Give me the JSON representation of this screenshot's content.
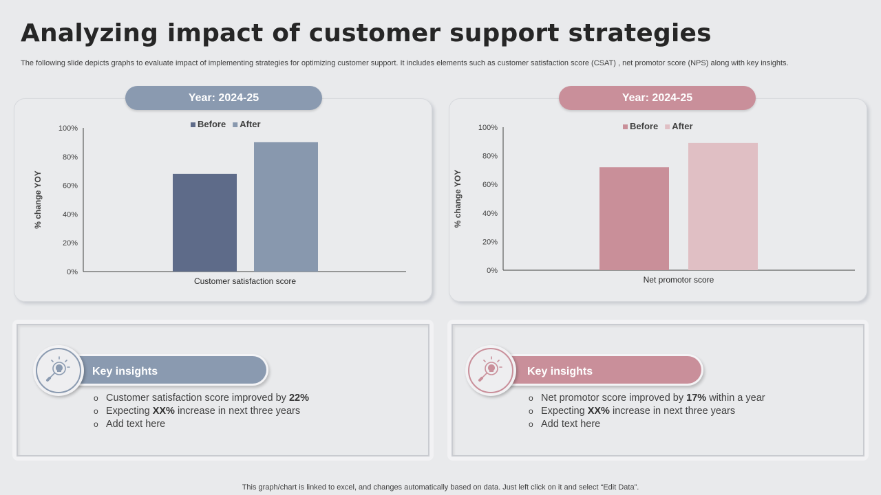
{
  "slide": {
    "title": "Analyzing impact of customer support strategies",
    "subtitle": "The following slide depicts graphs to evaluate impact of implementing strategies for optimizing customer support. It includes elements such as customer satisfaction score (CSAT) , net promotor score (NPS) along with key insights.",
    "footnote": "This graph/chart is linked to excel, and changes automatically based on data.  Just left click on it and select “Edit Data”."
  },
  "colors": {
    "blue_before": "#5e6b89",
    "blue_after": "#8898ae",
    "pink_before": "#c98f99",
    "pink_after": "#e0bfc4",
    "blue_accent": "#8a9ab0",
    "pink_accent": "#c98f9a"
  },
  "panels": {
    "left": {
      "year_label": "Year: 2024-25",
      "insights_title": "Key insights",
      "bullets": [
        {
          "pre": "Customer satisfaction score improved by ",
          "bold": "22%",
          "post": ""
        },
        {
          "pre": "Expecting ",
          "bold": "XX%",
          "post": " increase in next three years"
        },
        {
          "pre": "Add text here",
          "bold": "",
          "post": ""
        }
      ]
    },
    "right": {
      "year_label": "Year: 2024-25",
      "insights_title": "Key insights",
      "bullets": [
        {
          "pre": "Net promotor score improved by ",
          "bold": "17%",
          "post": " within a year"
        },
        {
          "pre": "Expecting ",
          "bold": "XX%",
          "post": " increase in next three years"
        },
        {
          "pre": "Add text here",
          "bold": "",
          "post": ""
        }
      ]
    }
  },
  "chart_data": [
    {
      "type": "bar",
      "categories": [
        "Customer satisfaction score"
      ],
      "series": [
        {
          "name": "Before",
          "values": [
            68
          ],
          "color": "#5e6b89"
        },
        {
          "name": "After",
          "values": [
            90
          ],
          "color": "#8898ae"
        }
      ],
      "ylabel": "% change YOY",
      "ylim": [
        0,
        100
      ],
      "yticks": [
        "0%",
        "20%",
        "40%",
        "60%",
        "80%",
        "100%"
      ],
      "grid": false,
      "legend": "top-center"
    },
    {
      "type": "bar",
      "categories": [
        "Net promotor score"
      ],
      "series": [
        {
          "name": "Before",
          "values": [
            72
          ],
          "color": "#c98f99"
        },
        {
          "name": "After",
          "values": [
            89
          ],
          "color": "#e0bfc4"
        }
      ],
      "ylabel": "% change YOY",
      "ylim": [
        0,
        100
      ],
      "yticks": [
        "0%",
        "20%",
        "40%",
        "60%",
        "80%",
        "100%"
      ],
      "grid": false,
      "legend": "top-center"
    }
  ]
}
